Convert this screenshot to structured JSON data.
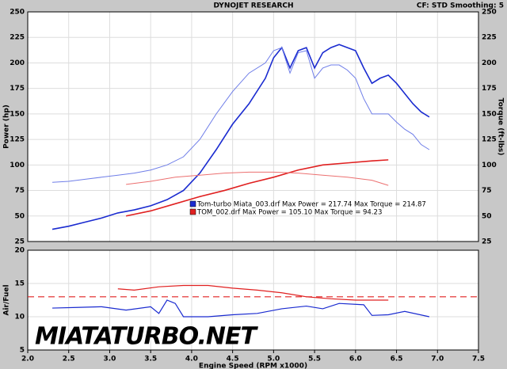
{
  "title": "DYNOJET RESEARCH",
  "settings_text": "CF: STD   Smoothing: 5",
  "watermark": "MIATATURBO.NET",
  "chart_data": [
    {
      "type": "line",
      "ylabel": "Power (hp)",
      "y2label": "Torque (ft-lbs)",
      "xlim": [
        2.0,
        7.5
      ],
      "xticks": [
        2,
        2.5,
        3,
        3.5,
        4,
        4.5,
        5,
        5.5,
        6,
        6.5,
        7,
        7.5
      ],
      "ylim": [
        25,
        250
      ],
      "yticks": [
        25,
        50,
        75,
        100,
        125,
        150,
        175,
        200,
        225,
        250
      ],
      "y2lim": [
        25,
        250
      ],
      "y2ticks": [
        25,
        50,
        75,
        100,
        125,
        150,
        175,
        200,
        225,
        250
      ],
      "grid": true,
      "legend": [
        {
          "text": "Tom-turbo Miata_003.drf Max Power = 217.74    Max Torque = 214.87",
          "color": "#1a2bd0"
        },
        {
          "text": "TOM_002.drf Max Power = 105.10    Max Torque = 94.23",
          "color": "#e02020"
        }
      ],
      "series": [
        {
          "color": "#1a2bd0",
          "width": 1.6,
          "x": [
            2.3,
            2.5,
            2.7,
            2.9,
            3.1,
            3.3,
            3.5,
            3.7,
            3.9,
            4.1,
            4.3,
            4.5,
            4.7,
            4.9,
            5.0,
            5.1,
            5.2,
            5.3,
            5.4,
            5.5,
            5.6,
            5.7,
            5.8,
            5.9,
            6.0,
            6.1,
            6.2,
            6.3,
            6.4,
            6.5,
            6.6,
            6.7,
            6.8,
            6.9
          ],
          "values": [
            37,
            40,
            44,
            48,
            53,
            56,
            60,
            66,
            75,
            92,
            115,
            140,
            160,
            185,
            205,
            215,
            195,
            212,
            215,
            195,
            210,
            215,
            218,
            215,
            212,
            195,
            180,
            185,
            188,
            180,
            170,
            160,
            152,
            147
          ]
        },
        {
          "color": "#6f7ee8",
          "width": 1,
          "axis": "y2",
          "x": [
            2.3,
            2.5,
            2.7,
            2.9,
            3.1,
            3.3,
            3.5,
            3.7,
            3.9,
            4.1,
            4.3,
            4.5,
            4.7,
            4.9,
            5.0,
            5.1,
            5.2,
            5.3,
            5.4,
            5.5,
            5.6,
            5.7,
            5.8,
            5.9,
            6.0,
            6.1,
            6.2,
            6.3,
            6.4,
            6.5,
            6.6,
            6.7,
            6.8,
            6.9
          ],
          "values": [
            83,
            84,
            86,
            88,
            90,
            92,
            95,
            100,
            108,
            125,
            150,
            172,
            190,
            200,
            212,
            215,
            190,
            210,
            212,
            185,
            195,
            198,
            198,
            193,
            185,
            165,
            150,
            150,
            150,
            142,
            135,
            130,
            120,
            115
          ]
        },
        {
          "color": "#e02020",
          "width": 1.6,
          "x": [
            3.2,
            3.5,
            3.8,
            4.1,
            4.4,
            4.7,
            5.0,
            5.3,
            5.6,
            5.9,
            6.2,
            6.4
          ],
          "values": [
            50,
            55,
            62,
            69,
            75,
            82,
            88,
            95,
            100,
            102,
            104,
            105
          ]
        },
        {
          "color": "#ec7070",
          "width": 1,
          "axis": "y2",
          "x": [
            3.2,
            3.5,
            3.8,
            4.1,
            4.4,
            4.7,
            5.0,
            5.3,
            5.6,
            5.9,
            6.2,
            6.4
          ],
          "values": [
            81,
            84,
            88,
            90,
            92,
            93,
            93,
            92,
            90,
            88,
            85,
            80
          ]
        }
      ]
    },
    {
      "type": "line",
      "ylabel": "Air/Fuel",
      "xlabel": "Engine Speed (RPM x1000)",
      "xlim": [
        2.0,
        7.5
      ],
      "xticks": [
        {
          "value": 2,
          "label": "2.0"
        },
        {
          "value": 2.5,
          "label": "2.5"
        },
        {
          "value": 3,
          "label": "3.0"
        },
        {
          "value": 3.5,
          "label": "3.5"
        },
        {
          "value": 4,
          "label": "4.0"
        },
        {
          "value": 4.5,
          "label": "4.5"
        },
        {
          "value": 5,
          "label": "5.0"
        },
        {
          "value": 5.5,
          "label": "5.5"
        },
        {
          "value": 6,
          "label": "6.0"
        },
        {
          "value": 6.5,
          "label": "6.5"
        },
        {
          "value": 7,
          "label": "7.0"
        },
        {
          "value": 7.5,
          "label": "7.5"
        }
      ],
      "ylim": [
        5,
        20
      ],
      "yticks": [
        5,
        10,
        15,
        20
      ],
      "grid": true,
      "reference": 13,
      "reference_color": "#e02020",
      "series": [
        {
          "color": "#1a2bd0",
          "width": 1.2,
          "x": [
            2.3,
            2.6,
            2.9,
            3.2,
            3.5,
            3.6,
            3.7,
            3.8,
            3.9,
            4.2,
            4.5,
            4.8,
            5.1,
            5.4,
            5.6,
            5.8,
            6.1,
            6.2,
            6.4,
            6.6,
            6.9
          ],
          "values": [
            11.3,
            11.4,
            11.5,
            11.0,
            11.5,
            10.5,
            12.5,
            12.0,
            10.0,
            10.0,
            10.3,
            10.5,
            11.2,
            11.6,
            11.2,
            12.0,
            11.8,
            10.2,
            10.3,
            10.8,
            10.0
          ]
        },
        {
          "color": "#e02020",
          "width": 1.2,
          "x": [
            3.1,
            3.3,
            3.6,
            3.9,
            4.2,
            4.5,
            4.8,
            5.1,
            5.4,
            5.7,
            6.0,
            6.4
          ],
          "values": [
            14.2,
            14.0,
            14.5,
            14.7,
            14.7,
            14.3,
            14.0,
            13.6,
            13.0,
            12.7,
            12.5,
            12.5
          ]
        }
      ]
    }
  ]
}
